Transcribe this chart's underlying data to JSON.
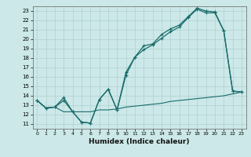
{
  "title": "",
  "xlabel": "Humidex (Indice chaleur)",
  "bg_color": "#cce8e8",
  "grid_color": "#b0d0d0",
  "line_color": "#1a6b6b",
  "xlim": [
    -0.5,
    23.5
  ],
  "ylim": [
    10.5,
    23.5
  ],
  "xticks": [
    0,
    1,
    2,
    3,
    4,
    5,
    6,
    7,
    8,
    9,
    10,
    11,
    12,
    13,
    14,
    15,
    16,
    17,
    18,
    19,
    20,
    21,
    22,
    23
  ],
  "yticks": [
    11,
    12,
    13,
    14,
    15,
    16,
    17,
    18,
    19,
    20,
    21,
    22,
    23
  ],
  "line1_x": [
    0,
    1,
    2,
    3,
    4,
    5,
    6,
    7,
    8,
    9,
    10,
    11,
    12,
    13,
    14,
    15,
    16,
    17,
    18,
    19,
    20,
    21,
    22,
    23
  ],
  "line1_y": [
    13.5,
    12.7,
    12.8,
    13.8,
    12.3,
    11.2,
    11.1,
    13.6,
    14.7,
    12.5,
    16.2,
    18.1,
    18.9,
    19.4,
    20.1,
    20.8,
    21.3,
    22.3,
    23.2,
    22.8,
    22.8,
    20.9,
    14.5,
    14.4
  ],
  "line2_x": [
    0,
    1,
    2,
    3,
    4,
    5,
    6,
    7,
    8,
    9,
    10,
    11,
    12,
    13,
    14,
    15,
    16,
    17,
    18,
    19,
    20,
    21,
    22,
    23
  ],
  "line2_y": [
    13.5,
    12.7,
    12.8,
    13.5,
    12.3,
    11.2,
    11.1,
    13.6,
    14.7,
    12.5,
    16.5,
    18.1,
    19.3,
    19.5,
    20.5,
    21.1,
    21.5,
    22.4,
    23.3,
    23.0,
    22.9,
    20.9,
    14.5,
    14.4
  ],
  "line3_x": [
    0,
    1,
    2,
    3,
    4,
    5,
    6,
    7,
    8,
    9,
    10,
    11,
    12,
    13,
    14,
    15,
    16,
    17,
    18,
    19,
    20,
    21,
    22,
    23
  ],
  "line3_y": [
    13.5,
    12.7,
    12.8,
    12.3,
    12.3,
    12.3,
    12.3,
    12.5,
    12.5,
    12.6,
    12.8,
    12.9,
    13.0,
    13.1,
    13.2,
    13.4,
    13.5,
    13.6,
    13.7,
    13.8,
    13.9,
    14.0,
    14.2,
    14.4
  ]
}
